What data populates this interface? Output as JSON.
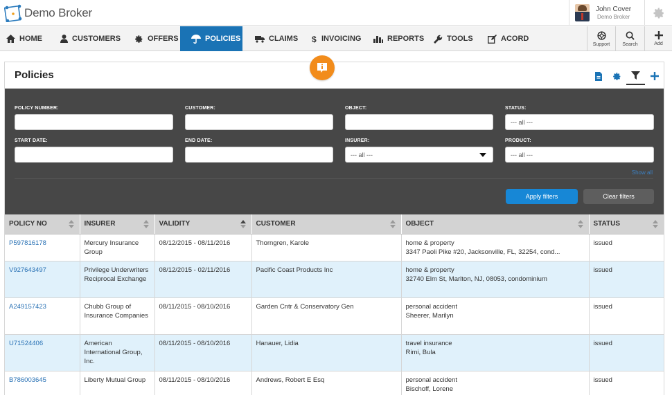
{
  "app": {
    "brand": "Demo Broker",
    "user_name": "John Cover",
    "user_company": "Demo Broker"
  },
  "nav": {
    "items": [
      {
        "label": "HOME",
        "icon": "home-icon"
      },
      {
        "label": "CUSTOMERS",
        "icon": "user-icon"
      },
      {
        "label": "OFFERS",
        "icon": "gear-badge-icon"
      },
      {
        "label": "POLICIES",
        "icon": "umbrella-hand-icon",
        "active": true
      },
      {
        "label": "CLAIMS",
        "icon": "truck-icon"
      },
      {
        "label": "INVOICING",
        "icon": "dollar-icon"
      },
      {
        "label": "REPORTS",
        "icon": "bar-chart-icon"
      },
      {
        "label": "TOOLS",
        "icon": "wrench-icon"
      },
      {
        "label": "ACORD",
        "icon": "edit-icon"
      }
    ],
    "right_tools": [
      {
        "label": "Support",
        "icon": "lifebuoy-icon"
      },
      {
        "label": "Search",
        "icon": "search-icon"
      },
      {
        "label": "Add",
        "icon": "plus-icon"
      }
    ]
  },
  "page": {
    "title": "Policies"
  },
  "filters": {
    "policy_number_label": "POLICY NUMBER:",
    "customer_label": "CUSTOMER:",
    "object_label": "OBJECT:",
    "status_label": "STATUS:",
    "status_value": "--- all ---",
    "start_date_label": "START DATE:",
    "end_date_label": "END DATE:",
    "insurer_label": "INSURER:",
    "insurer_value": "--- all ---",
    "product_label": "PRODUCT:",
    "product_value": "--- all ---",
    "show_all": "Show all",
    "apply_label": "Apply filters",
    "clear_label": "Clear filters"
  },
  "table": {
    "headers": [
      "POLICY NO",
      "INSURER",
      "VALIDITY",
      "CUSTOMER",
      "OBJECT",
      "STATUS"
    ],
    "rows": [
      {
        "policy_no": "P597816178",
        "insurer": "Mercury Insurance Group",
        "validity": "08/12/2015 - 08/11/2016",
        "customer": "Thorngren, Karole",
        "object_type": "home & property",
        "object_detail": "3347 Paoli Pike #20, Jacksonville, FL, 32254, cond...",
        "status": "issued"
      },
      {
        "policy_no": "V927643497",
        "insurer": "Privilege Underwriters Reciprocal Exchange",
        "validity": "08/12/2015 - 02/11/2016",
        "customer": "Pacific Coast Products Inc",
        "object_type": "home & property",
        "object_detail": "32740 Elm St, Marlton, NJ, 08053, condominium",
        "status": "issued"
      },
      {
        "policy_no": "A249157423",
        "insurer": "Chubb Group of Insurance Companies",
        "validity": "08/11/2015 - 08/10/2016",
        "customer": "Garden Cntr & Conservatory Gen",
        "object_type": "personal accident",
        "object_detail": "Sheerer, Marilyn",
        "status": "issued"
      },
      {
        "policy_no": "U71524406",
        "insurer": "American International Group, Inc.",
        "validity": "08/11/2015 - 08/10/2016",
        "customer": "Hanauer, Lidia",
        "object_type": "travel insurance",
        "object_detail": "Rimi, Bula",
        "status": "issued"
      },
      {
        "policy_no": "B786003645",
        "insurer": "Liberty Mutual Group",
        "validity": "08/11/2015 - 08/10/2016",
        "customer": "Andrews, Robert E Esq",
        "object_type": "personal accident",
        "object_detail": "Bischoff, Lorene",
        "status": "issued"
      }
    ]
  }
}
